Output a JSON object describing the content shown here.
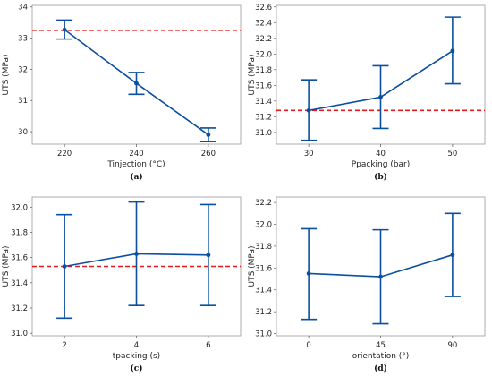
{
  "chart_data": [
    {
      "type": "line",
      "caption": "(a)",
      "xlabel": "Tinjection (°C)",
      "ylabel": "UTS (MPa)",
      "categories": [
        "220",
        "240",
        "260"
      ],
      "values": [
        33.27,
        31.55,
        29.9
      ],
      "error_low": [
        32.97,
        31.2,
        29.68
      ],
      "error_high": [
        33.58,
        31.9,
        30.12
      ],
      "reference_line": 33.25,
      "ylim": [
        29.6,
        34.05
      ],
      "yticks": [
        30,
        31,
        32,
        33,
        34
      ],
      "ytick_labels": [
        "30",
        "31",
        "32",
        "33",
        "34"
      ]
    },
    {
      "type": "line",
      "caption": "(b)",
      "xlabel": "Ppacking (bar)",
      "ylabel": "UTS (MPa)",
      "categories": [
        "30",
        "40",
        "50"
      ],
      "values": [
        31.28,
        31.45,
        32.04
      ],
      "error_low": [
        30.9,
        31.05,
        31.62
      ],
      "error_high": [
        31.67,
        31.85,
        32.47
      ],
      "reference_line": 31.28,
      "ylim": [
        30.85,
        32.62
      ],
      "yticks": [
        31.0,
        31.2,
        31.4,
        31.6,
        31.8,
        32.0,
        32.2,
        32.4,
        32.6
      ],
      "ytick_labels": [
        "31.0",
        "31.2",
        "31.4",
        "31.6",
        "31.8",
        "32.0",
        "32.2",
        "32.4",
        "32.6"
      ]
    },
    {
      "type": "line",
      "caption": "(c)",
      "xlabel": "tpacking (s)",
      "ylabel": "UTS (MPa)",
      "categories": [
        "2",
        "4",
        "6"
      ],
      "values": [
        31.53,
        31.63,
        31.62
      ],
      "error_low": [
        31.12,
        31.22,
        31.22
      ],
      "error_high": [
        31.94,
        32.04,
        32.02
      ],
      "reference_line": 31.53,
      "ylim": [
        30.98,
        32.08
      ],
      "yticks": [
        31.0,
        31.2,
        31.4,
        31.6,
        31.8,
        32.0
      ],
      "ytick_labels": [
        "31.0",
        "31.2",
        "31.4",
        "31.6",
        "31.8",
        "32.0"
      ]
    },
    {
      "type": "line",
      "caption": "(d)",
      "xlabel": "orientation (°)",
      "ylabel": "UTS (MPa)",
      "categories": [
        "0",
        "45",
        "90"
      ],
      "values": [
        31.55,
        31.52,
        31.72
      ],
      "error_low": [
        31.13,
        31.09,
        31.34
      ],
      "error_high": [
        31.96,
        31.95,
        32.1
      ],
      "reference_line": null,
      "ylim": [
        30.98,
        32.25
      ],
      "yticks": [
        31.0,
        31.2,
        31.4,
        31.6,
        31.8,
        32.0,
        32.2
      ],
      "ytick_labels": [
        "31.0",
        "31.2",
        "31.4",
        "31.6",
        "31.8",
        "32.0",
        "32.2"
      ]
    }
  ],
  "colors": {
    "series": "#0b4fa0",
    "reference": "#e41a1c",
    "frame": "#9a9a9a"
  }
}
